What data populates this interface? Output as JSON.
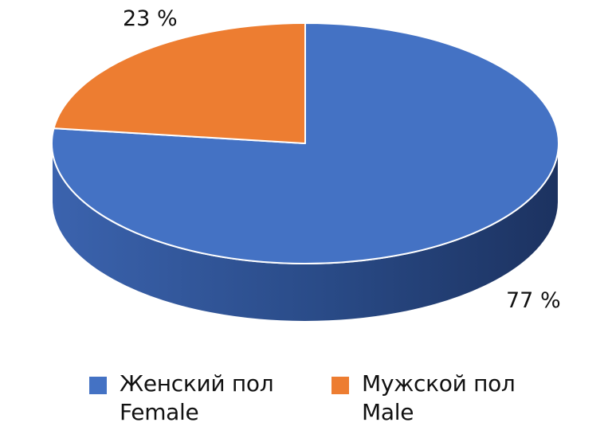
{
  "chart_data": {
    "type": "pie",
    "title": "",
    "three_d": true,
    "categories": [
      "Женский пол Female",
      "Мужской пол Male"
    ],
    "series": [
      {
        "values": [
          77,
          23
        ]
      }
    ],
    "slices": [
      {
        "label_ru": "Женский пол",
        "label_en": "Female",
        "value": 77,
        "value_label": "77 %",
        "color": "#4472C4",
        "side_color": "#2B4A86"
      },
      {
        "label_ru": "Мужской пол",
        "label_en": "Male",
        "value": 23,
        "value_label": "23 %",
        "color": "#ED7D31",
        "side_color": "#A8531C"
      }
    ],
    "legend_position": "bottom"
  }
}
